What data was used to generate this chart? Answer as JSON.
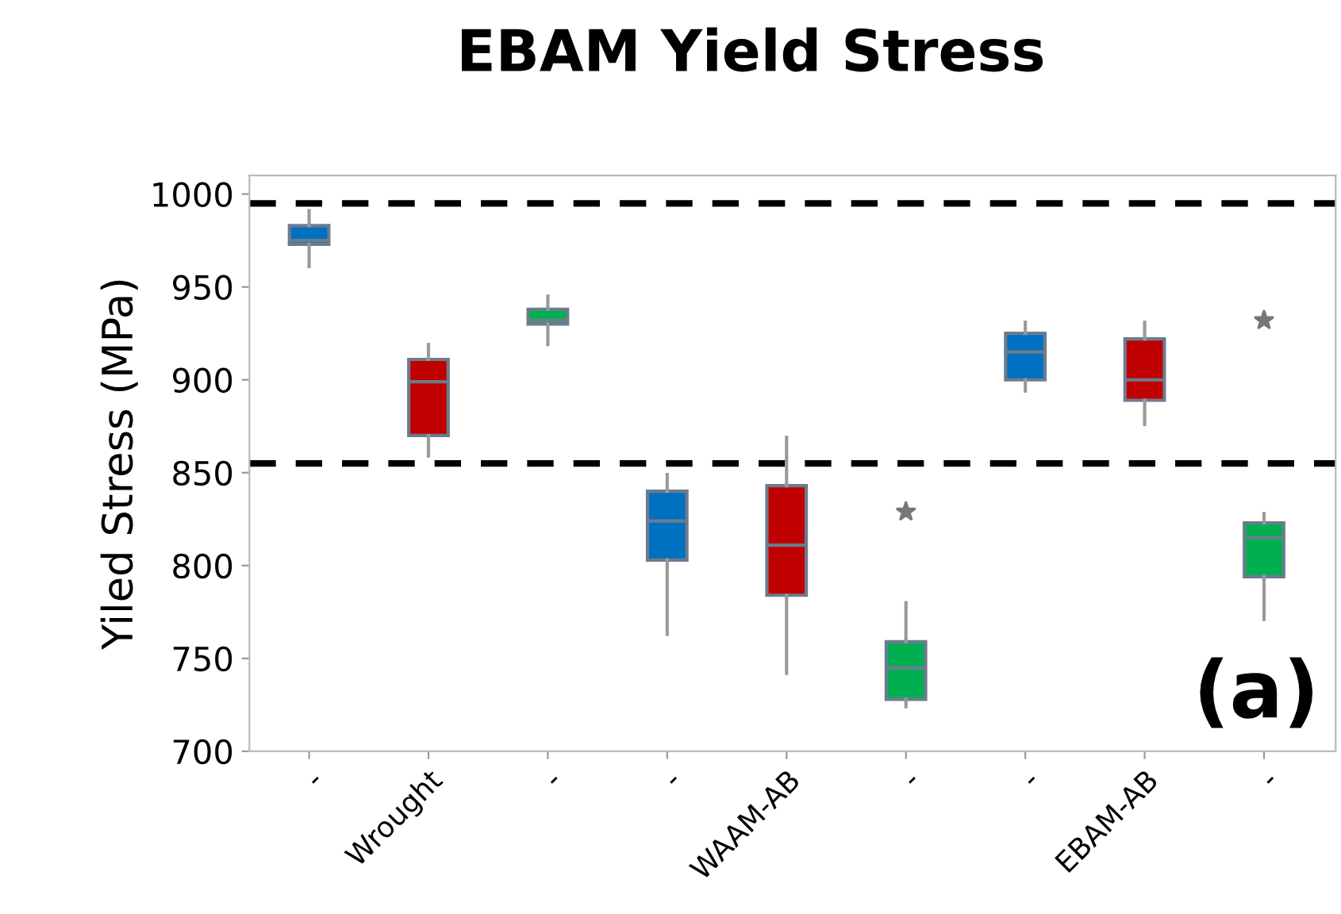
{
  "chart_data": {
    "type": "box",
    "title": "EBAM Yield Stress",
    "ylabel": "Yiled Stress (MPa)",
    "categories": [
      "-",
      "Wrought",
      "-",
      "-",
      "WAAM-AB",
      "-",
      "-",
      "EBAM-AB",
      "-"
    ],
    "colors": [
      "#0070c0",
      "#c00000",
      "#00b050",
      "#0070c0",
      "#c00000",
      "#00b050",
      "#0070c0",
      "#c00000",
      "#00b050"
    ],
    "boxes": [
      {
        "low": 961,
        "q1": 973,
        "median": 975,
        "q3": 983,
        "high": 991
      },
      {
        "low": 859,
        "q1": 870,
        "median": 899,
        "q3": 911,
        "high": 919
      },
      {
        "low": 919,
        "q1": 930,
        "median": 932,
        "q3": 938,
        "high": 945
      },
      {
        "low": 763,
        "q1": 803,
        "median": 824,
        "q3": 840,
        "high": 849
      },
      {
        "low": 742,
        "q1": 784,
        "median": 811,
        "q3": 843,
        "high": 869
      },
      {
        "low": 724,
        "q1": 728,
        "median": 745,
        "q3": 759,
        "high": 780,
        "outliers": [
          829
        ]
      },
      {
        "low": 894,
        "q1": 900,
        "median": 915,
        "q3": 925,
        "high": 931
      },
      {
        "low": 876,
        "q1": 889,
        "median": 900,
        "q3": 922,
        "high": 931
      },
      {
        "low": 771,
        "q1": 794,
        "median": 815,
        "q3": 823,
        "high": 828,
        "outliers": [
          932
        ]
      }
    ],
    "ylim": [
      700,
      1010
    ],
    "yticks": [
      700,
      750,
      800,
      850,
      900,
      950,
      1000
    ],
    "ref_lines": [
      {
        "axis": "y",
        "value": 995,
        "color": "#000000",
        "line_style": "dashed"
      },
      {
        "axis": "y",
        "value": 855,
        "color": "#000000",
        "line_style": "dashed"
      }
    ],
    "marker": "star",
    "grid": false,
    "legend": false,
    "annotations": [
      "(a)"
    ]
  }
}
